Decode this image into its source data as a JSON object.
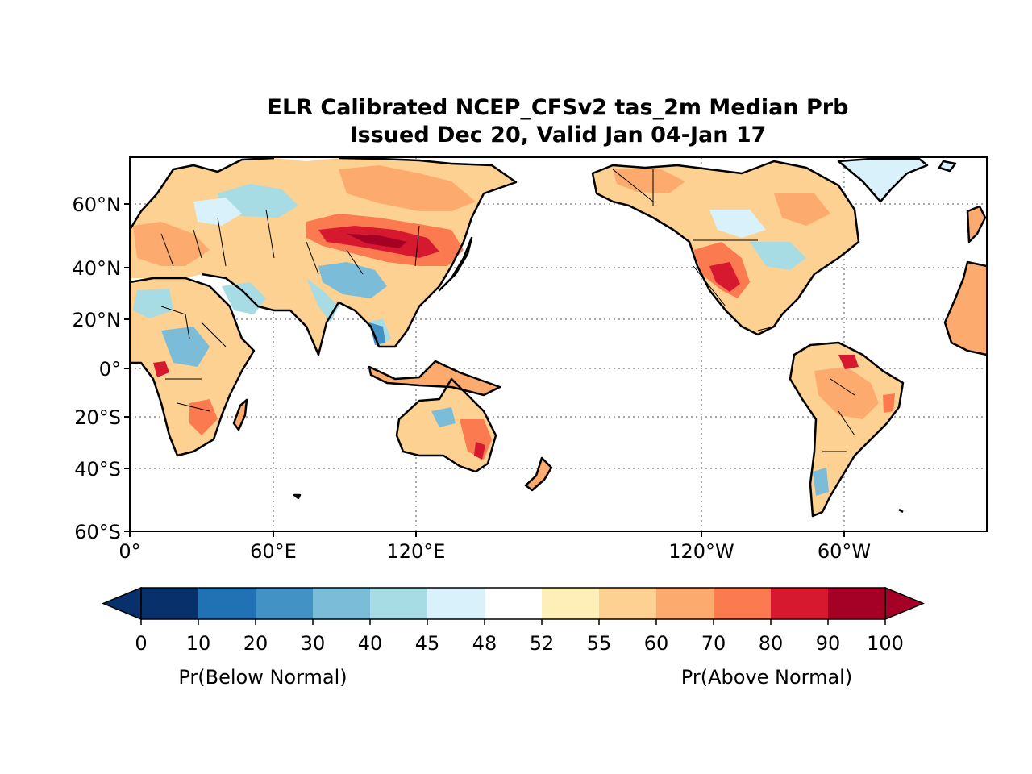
{
  "title": {
    "line1": "ELR Calibrated NCEP_CFSv2 tas_2m Median Prb",
    "line2": "Issued Dec 20, Valid Jan 04-Jan 17"
  },
  "map": {
    "projection": "equirectangular, Pacific-centered",
    "lat_range": [
      -60,
      77
    ],
    "lon_ticks": [
      "0°",
      "60°E",
      "120°E",
      "120°W",
      "60°W"
    ],
    "lat_ticks": [
      "60°N",
      "40°N",
      "20°N",
      "0°",
      "20°S",
      "40°S",
      "60°S"
    ],
    "gridlines": "dotted gray",
    "coastlines": true,
    "country_borders": true
  },
  "colorbar": {
    "tick_labels": [
      "0",
      "10",
      "20",
      "30",
      "40",
      "45",
      "48",
      "52",
      "55",
      "60",
      "70",
      "80",
      "90",
      "100"
    ],
    "bins": [
      {
        "from": 0,
        "to": 10,
        "color": "#08306b"
      },
      {
        "from": 10,
        "to": 20,
        "color": "#2171b5"
      },
      {
        "from": 20,
        "to": 30,
        "color": "#4292c6"
      },
      {
        "from": 30,
        "to": 40,
        "color": "#7bbcd8"
      },
      {
        "from": 40,
        "to": 45,
        "color": "#a8dce5"
      },
      {
        "from": 45,
        "to": 48,
        "color": "#d8f1fb"
      },
      {
        "from": 48,
        "to": 52,
        "color": "#ffffff"
      },
      {
        "from": 52,
        "to": 55,
        "color": "#feefb8"
      },
      {
        "from": 55,
        "to": 60,
        "color": "#fdd191"
      },
      {
        "from": 60,
        "to": 70,
        "color": "#fdaa6e"
      },
      {
        "from": 70,
        "to": 80,
        "color": "#fb7a50"
      },
      {
        "from": 80,
        "to": 90,
        "color": "#d7192f"
      },
      {
        "from": 90,
        "to": 100,
        "color": "#a50026"
      }
    ],
    "extend": "both",
    "label_below": "Pr(Below Normal)",
    "label_above": "Pr(Above Normal)"
  }
}
